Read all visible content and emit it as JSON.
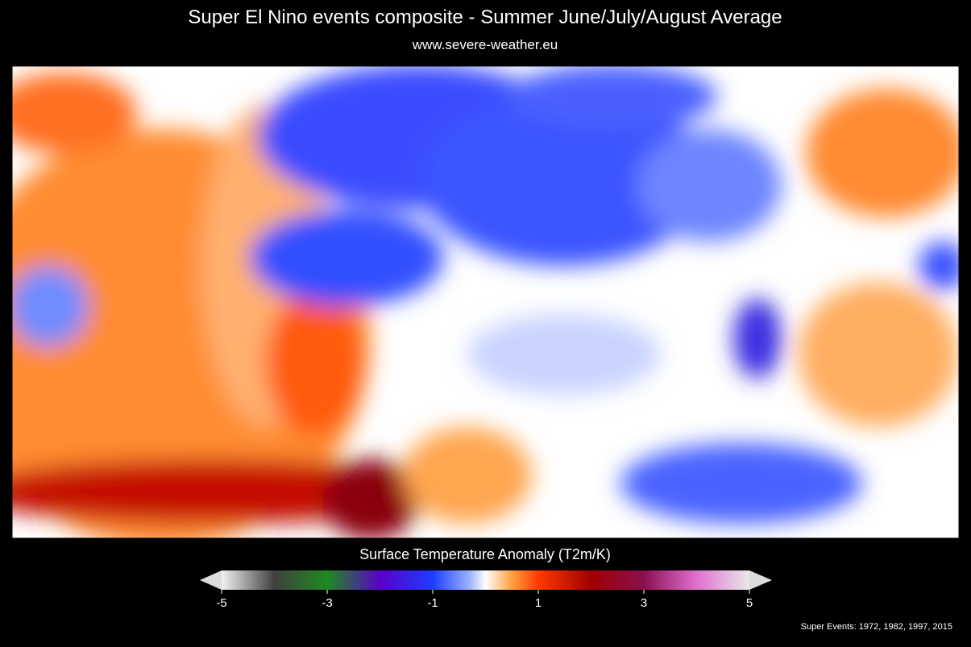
{
  "header": {
    "title": "Super El Nino events composite - Summer June/July/August Average",
    "subtitle": "www.severe-weather.eu"
  },
  "colorbar": {
    "label": "Surface Temperature Anomaly (T2m/K)",
    "range": [
      -5,
      5
    ],
    "ticks": [
      -5,
      -3,
      -1,
      1,
      3,
      5
    ]
  },
  "footer": "Super Events: 1972, 1982, 1997, 2015"
}
